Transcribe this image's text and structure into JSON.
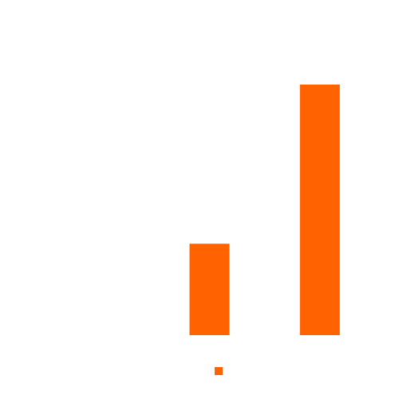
{
  "chart_data": {
    "type": "bar",
    "categories": [
      "",
      "",
      ""
    ],
    "values": [
      0,
      36.5,
      100
    ],
    "ylim": [
      0,
      100
    ],
    "grid": false,
    "legend": "bottom-center",
    "series": [
      {
        "values": [
          0,
          36.5,
          100
        ],
        "color": "#ff6200"
      }
    ],
    "colors": {
      "bar": "#ff6200",
      "background": "#ffffff"
    }
  }
}
